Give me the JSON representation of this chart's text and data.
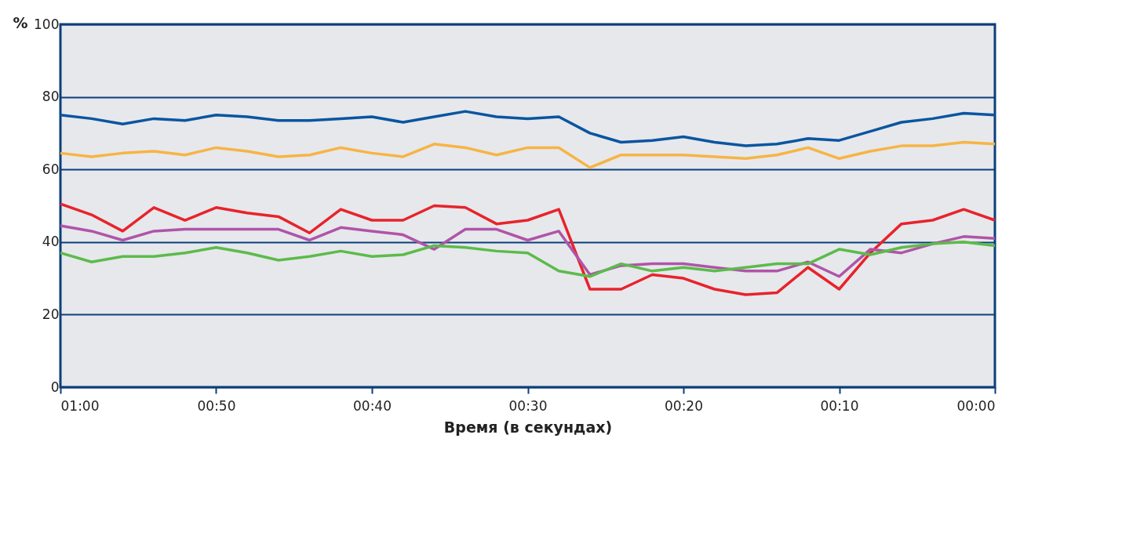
{
  "chart_data": {
    "type": "line",
    "xlabel": "Время (в секундах)",
    "ylabel": "%",
    "x": [
      60,
      58,
      56,
      54,
      52,
      50,
      48,
      46,
      44,
      42,
      40,
      38,
      36,
      34,
      32,
      30,
      28,
      26,
      24,
      22,
      20,
      18,
      16,
      14,
      12,
      10,
      8,
      6,
      4,
      2,
      0
    ],
    "xlim": [
      60,
      0
    ],
    "xticks": [
      {
        "value": 60,
        "label": "01:00"
      },
      {
        "value": 50,
        "label": "00:50"
      },
      {
        "value": 40,
        "label": "00:40"
      },
      {
        "value": 30,
        "label": "00:30"
      },
      {
        "value": 20,
        "label": "00:20"
      },
      {
        "value": 10,
        "label": "00:10"
      },
      {
        "value": 0,
        "label": "00:00"
      }
    ],
    "ylim": [
      0,
      100
    ],
    "yticks": [
      0,
      20,
      40,
      60,
      80,
      100
    ],
    "grid": "y",
    "line_style": "solid",
    "marker": "none",
    "series": [
      {
        "color": "#0a55a0",
        "values": [
          75,
          74,
          72.5,
          74,
          73.5,
          75,
          74.5,
          73.5,
          73.5,
          74,
          74.5,
          73,
          74.5,
          76,
          74.5,
          74,
          74.5,
          70,
          67.5,
          68,
          69,
          67.5,
          66.5,
          67,
          68.5,
          68,
          70.5,
          73,
          74,
          75.5,
          75
        ]
      },
      {
        "color": "#f7b444",
        "values": [
          64.5,
          63.5,
          64.5,
          65,
          64,
          66,
          65,
          63.5,
          64,
          66,
          64.5,
          63.5,
          67,
          66,
          64,
          66,
          66,
          60.5,
          64,
          64,
          64,
          63.5,
          63,
          64,
          66,
          63,
          65,
          66.5,
          66.5,
          67.5,
          67
        ]
      },
      {
        "color": "#e8232b",
        "values": [
          50.5,
          47.5,
          43,
          49.5,
          46,
          49.5,
          48,
          47,
          42.5,
          49,
          46,
          46,
          50,
          49.5,
          45,
          46,
          49,
          27,
          27,
          31,
          30,
          27,
          25.5,
          26,
          33,
          27,
          37,
          45,
          46,
          49,
          46
        ]
      },
      {
        "color": "#b054a8",
        "values": [
          44.5,
          43,
          40.5,
          43,
          43.5,
          43.5,
          43.5,
          43.5,
          40.5,
          44,
          43,
          42,
          38,
          43.5,
          43.5,
          40.5,
          43,
          31,
          33.5,
          34,
          34,
          33,
          32,
          32,
          34.5,
          30.5,
          38,
          37,
          39.5,
          41.5,
          41
        ]
      },
      {
        "color": "#5cbb4a",
        "values": [
          37,
          34.5,
          36,
          36,
          37,
          38.5,
          37,
          35,
          36,
          37.5,
          36,
          36.5,
          39,
          38.5,
          37.5,
          37,
          32,
          30.5,
          34,
          32,
          33,
          32,
          33,
          34,
          34,
          38,
          36.5,
          38.5,
          39.5,
          40,
          39
        ]
      }
    ]
  }
}
